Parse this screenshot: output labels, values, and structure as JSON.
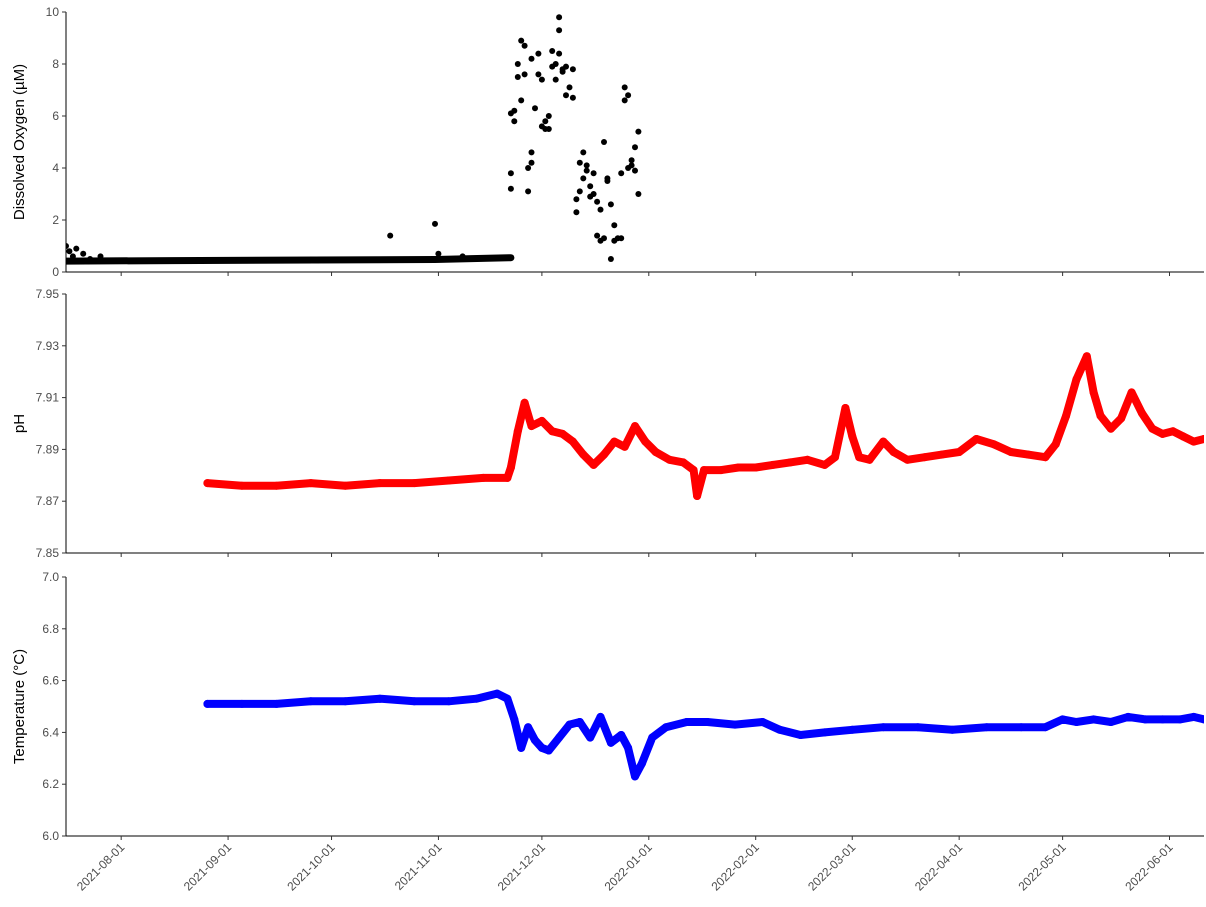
{
  "chart_data": [
    {
      "type": "scatter",
      "ylabel": "Dissolved Oxygen (µM)",
      "ylim": [
        0,
        10
      ],
      "yticks": [
        "0",
        "2",
        "4",
        "6",
        "8",
        "10"
      ],
      "xlim": [
        "2021-07-16",
        "2022-06-11"
      ],
      "show_x_tick_labels": false,
      "color": "#000000",
      "baseline_segments": [
        {
          "x": [
            "2021-07-16",
            "2021-08-16",
            "2021-09-26",
            "2021-10-31",
            "2021-11-22"
          ],
          "y": [
            0.42,
            0.44,
            0.46,
            0.48,
            0.55
          ]
        }
      ],
      "points": [
        {
          "x": "2021-07-16",
          "y": 1.0
        },
        {
          "x": "2021-07-17",
          "y": 0.8
        },
        {
          "x": "2021-07-18",
          "y": 0.6
        },
        {
          "x": "2021-07-19",
          "y": 0.9
        },
        {
          "x": "2021-07-21",
          "y": 0.7
        },
        {
          "x": "2021-07-23",
          "y": 0.5
        },
        {
          "x": "2021-07-26",
          "y": 0.6
        },
        {
          "x": "2021-10-18",
          "y": 1.4
        },
        {
          "x": "2021-10-31",
          "y": 1.85
        },
        {
          "x": "2021-11-01",
          "y": 0.7
        },
        {
          "x": "2021-11-08",
          "y": 0.6
        },
        {
          "x": "2021-11-22",
          "y": 3.2
        },
        {
          "x": "2021-11-22",
          "y": 3.8
        },
        {
          "x": "2021-11-22",
          "y": 6.1
        },
        {
          "x": "2021-11-23",
          "y": 6.2
        },
        {
          "x": "2021-11-23",
          "y": 5.8
        },
        {
          "x": "2021-11-24",
          "y": 7.5
        },
        {
          "x": "2021-11-24",
          "y": 8.0
        },
        {
          "x": "2021-11-25",
          "y": 8.9
        },
        {
          "x": "2021-11-25",
          "y": 6.6
        },
        {
          "x": "2021-11-26",
          "y": 7.6
        },
        {
          "x": "2021-11-26",
          "y": 8.7
        },
        {
          "x": "2021-11-27",
          "y": 3.1
        },
        {
          "x": "2021-11-27",
          "y": 4.0
        },
        {
          "x": "2021-11-28",
          "y": 4.2
        },
        {
          "x": "2021-11-28",
          "y": 8.2
        },
        {
          "x": "2021-11-28",
          "y": 4.6
        },
        {
          "x": "2021-11-29",
          "y": 6.3
        },
        {
          "x": "2021-11-30",
          "y": 7.6
        },
        {
          "x": "2021-11-30",
          "y": 8.4
        },
        {
          "x": "2021-12-01",
          "y": 7.4
        },
        {
          "x": "2021-12-01",
          "y": 5.6
        },
        {
          "x": "2021-12-02",
          "y": 5.5
        },
        {
          "x": "2021-12-02",
          "y": 5.8
        },
        {
          "x": "2021-12-03",
          "y": 6.0
        },
        {
          "x": "2021-12-03",
          "y": 5.5
        },
        {
          "x": "2021-12-04",
          "y": 8.5
        },
        {
          "x": "2021-12-04",
          "y": 7.9
        },
        {
          "x": "2021-12-05",
          "y": 8.0
        },
        {
          "x": "2021-12-05",
          "y": 7.4
        },
        {
          "x": "2021-12-06",
          "y": 9.8
        },
        {
          "x": "2021-12-06",
          "y": 9.3
        },
        {
          "x": "2021-12-06",
          "y": 8.4
        },
        {
          "x": "2021-12-07",
          "y": 7.8
        },
        {
          "x": "2021-12-07",
          "y": 7.7
        },
        {
          "x": "2021-12-08",
          "y": 6.8
        },
        {
          "x": "2021-12-08",
          "y": 7.9
        },
        {
          "x": "2021-12-09",
          "y": 7.1
        },
        {
          "x": "2021-12-10",
          "y": 7.8
        },
        {
          "x": "2021-12-10",
          "y": 6.7
        },
        {
          "x": "2021-12-11",
          "y": 2.8
        },
        {
          "x": "2021-12-11",
          "y": 2.3
        },
        {
          "x": "2021-12-12",
          "y": 3.1
        },
        {
          "x": "2021-12-12",
          "y": 4.2
        },
        {
          "x": "2021-12-13",
          "y": 4.6
        },
        {
          "x": "2021-12-13",
          "y": 3.6
        },
        {
          "x": "2021-12-14",
          "y": 3.9
        },
        {
          "x": "2021-12-14",
          "y": 4.1
        },
        {
          "x": "2021-12-15",
          "y": 3.3
        },
        {
          "x": "2021-12-15",
          "y": 2.9
        },
        {
          "x": "2021-12-16",
          "y": 3.8
        },
        {
          "x": "2021-12-16",
          "y": 3.0
        },
        {
          "x": "2021-12-17",
          "y": 1.4
        },
        {
          "x": "2021-12-17",
          "y": 2.7
        },
        {
          "x": "2021-12-18",
          "y": 1.2
        },
        {
          "x": "2021-12-18",
          "y": 2.4
        },
        {
          "x": "2021-12-19",
          "y": 5.0
        },
        {
          "x": "2021-12-19",
          "y": 1.3
        },
        {
          "x": "2021-12-20",
          "y": 3.6
        },
        {
          "x": "2021-12-20",
          "y": 3.5
        },
        {
          "x": "2021-12-21",
          "y": 2.6
        },
        {
          "x": "2021-12-21",
          "y": 0.5
        },
        {
          "x": "2021-12-22",
          "y": 1.2
        },
        {
          "x": "2021-12-22",
          "y": 1.8
        },
        {
          "x": "2021-12-23",
          "y": 1.3
        },
        {
          "x": "2021-12-24",
          "y": 1.3
        },
        {
          "x": "2021-12-24",
          "y": 3.8
        },
        {
          "x": "2021-12-25",
          "y": 6.6
        },
        {
          "x": "2021-12-25",
          "y": 7.1
        },
        {
          "x": "2021-12-26",
          "y": 6.8
        },
        {
          "x": "2021-12-26",
          "y": 4.0
        },
        {
          "x": "2021-12-27",
          "y": 4.1
        },
        {
          "x": "2021-12-27",
          "y": 4.3
        },
        {
          "x": "2021-12-28",
          "y": 3.9
        },
        {
          "x": "2021-12-28",
          "y": 4.8
        },
        {
          "x": "2021-12-29",
          "y": 5.4
        },
        {
          "x": "2021-12-29",
          "y": 3.0
        }
      ]
    },
    {
      "type": "line",
      "ylabel": "pH",
      "ylim": [
        7.85,
        7.95
      ],
      "yticks": [
        "7.85",
        "7.87",
        "7.89",
        "7.91",
        "7.93",
        "7.95"
      ],
      "xlim": [
        "2021-07-16",
        "2022-06-11"
      ],
      "show_x_tick_labels": false,
      "color": "#ff0000",
      "series": [
        {
          "x": [
            "2021-08-26",
            "2021-09-05",
            "2021-09-15",
            "2021-09-25",
            "2021-10-05",
            "2021-10-15",
            "2021-10-25",
            "2021-11-04",
            "2021-11-14",
            "2021-11-21",
            "2021-11-22",
            "2021-11-24",
            "2021-11-26",
            "2021-11-28",
            "2021-12-01",
            "2021-12-04",
            "2021-12-07",
            "2021-12-10",
            "2021-12-13",
            "2021-12-16",
            "2021-12-19",
            "2021-12-22",
            "2021-12-25",
            "2021-12-28",
            "2021-12-31",
            "2022-01-03",
            "2022-01-07",
            "2022-01-11",
            "2022-01-14",
            "2022-01-15",
            "2022-01-17",
            "2022-01-22",
            "2022-01-27",
            "2022-02-01",
            "2022-02-06",
            "2022-02-11",
            "2022-02-16",
            "2022-02-21",
            "2022-02-24",
            "2022-02-27",
            "2022-03-01",
            "2022-03-03",
            "2022-03-06",
            "2022-03-10",
            "2022-03-13",
            "2022-03-17",
            "2022-03-22",
            "2022-03-27",
            "2022-04-01",
            "2022-04-06",
            "2022-04-11",
            "2022-04-16",
            "2022-04-21",
            "2022-04-26",
            "2022-04-29",
            "2022-05-02",
            "2022-05-05",
            "2022-05-08",
            "2022-05-10",
            "2022-05-12",
            "2022-05-15",
            "2022-05-18",
            "2022-05-21",
            "2022-05-24",
            "2022-05-27",
            "2022-05-30",
            "2022-06-02",
            "2022-06-05",
            "2022-06-08",
            "2022-06-11"
          ],
          "y": [
            7.877,
            7.876,
            7.876,
            7.877,
            7.876,
            7.877,
            7.877,
            7.878,
            7.879,
            7.879,
            7.883,
            7.897,
            7.908,
            7.899,
            7.901,
            7.897,
            7.896,
            7.893,
            7.888,
            7.884,
            7.888,
            7.893,
            7.891,
            7.899,
            7.893,
            7.889,
            7.886,
            7.885,
            7.882,
            7.872,
            7.882,
            7.882,
            7.883,
            7.883,
            7.884,
            7.885,
            7.886,
            7.884,
            7.887,
            7.906,
            7.895,
            7.887,
            7.886,
            7.893,
            7.889,
            7.886,
            7.887,
            7.888,
            7.889,
            7.894,
            7.892,
            7.889,
            7.888,
            7.887,
            7.892,
            7.903,
            7.917,
            7.926,
            7.912,
            7.903,
            7.898,
            7.902,
            7.912,
            7.904,
            7.898,
            7.896,
            7.897,
            7.895,
            7.893,
            7.894
          ]
        }
      ]
    },
    {
      "type": "line",
      "ylabel": "Temperature (°C)",
      "ylim": [
        6.0,
        7.0
      ],
      "yticks": [
        "6.0",
        "6.2",
        "6.4",
        "6.6",
        "6.8",
        "7.0"
      ],
      "xlim": [
        "2021-07-16",
        "2022-06-11"
      ],
      "xticks": [
        "2021-08-01",
        "2021-09-01",
        "2021-10-01",
        "2021-11-01",
        "2021-12-01",
        "2022-01-01",
        "2022-02-01",
        "2022-03-01",
        "2022-04-01",
        "2022-05-01",
        "2022-06-01"
      ],
      "show_x_tick_labels": true,
      "color": "#0000ff",
      "series": [
        {
          "x": [
            "2021-08-26",
            "2021-09-05",
            "2021-09-15",
            "2021-09-25",
            "2021-10-05",
            "2021-10-15",
            "2021-10-25",
            "2021-11-04",
            "2021-11-12",
            "2021-11-18",
            "2021-11-21",
            "2021-11-23",
            "2021-11-25",
            "2021-11-27",
            "2021-11-29",
            "2021-12-01",
            "2021-12-03",
            "2021-12-06",
            "2021-12-09",
            "2021-12-12",
            "2021-12-15",
            "2021-12-18",
            "2021-12-21",
            "2021-12-24",
            "2021-12-26",
            "2021-12-28",
            "2021-12-30",
            "2022-01-02",
            "2022-01-06",
            "2022-01-12",
            "2022-01-18",
            "2022-01-26",
            "2022-02-03",
            "2022-02-08",
            "2022-02-14",
            "2022-02-21",
            "2022-03-01",
            "2022-03-10",
            "2022-03-20",
            "2022-03-30",
            "2022-04-09",
            "2022-04-19",
            "2022-04-26",
            "2022-05-01",
            "2022-05-05",
            "2022-05-10",
            "2022-05-15",
            "2022-05-20",
            "2022-05-25",
            "2022-05-30",
            "2022-06-04",
            "2022-06-08",
            "2022-06-11"
          ],
          "y": [
            6.51,
            6.51,
            6.51,
            6.52,
            6.52,
            6.53,
            6.52,
            6.52,
            6.53,
            6.55,
            6.53,
            6.45,
            6.34,
            6.42,
            6.37,
            6.34,
            6.33,
            6.38,
            6.43,
            6.44,
            6.38,
            6.46,
            6.36,
            6.39,
            6.34,
            6.23,
            6.28,
            6.38,
            6.42,
            6.44,
            6.44,
            6.43,
            6.44,
            6.41,
            6.39,
            6.4,
            6.41,
            6.42,
            6.42,
            6.41,
            6.42,
            6.42,
            6.42,
            6.45,
            6.44,
            6.45,
            6.44,
            6.46,
            6.45,
            6.45,
            6.45,
            6.46,
            6.45
          ]
        }
      ]
    }
  ]
}
